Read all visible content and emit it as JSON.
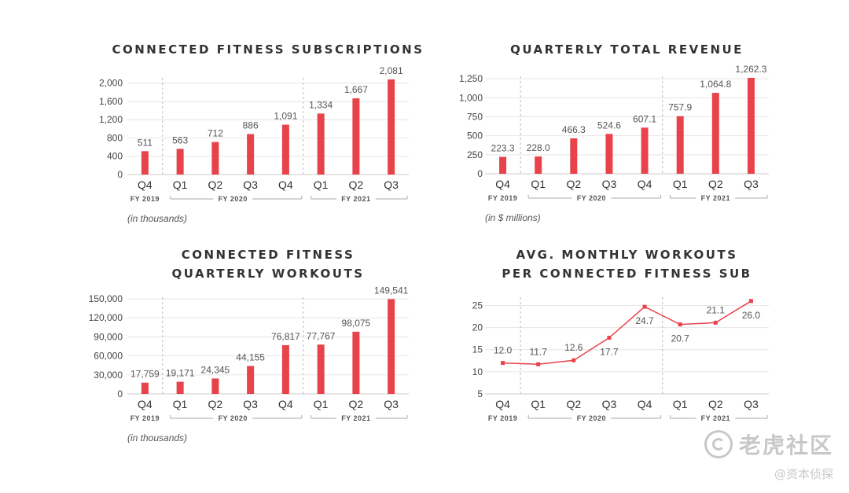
{
  "colors": {
    "bar": "#e8424b",
    "line": "#e8424b",
    "grid": "#e6e6e6",
    "axis": "#cccccc",
    "divider": "#bbbbbb"
  },
  "chart_data": [
    {
      "type": "bar",
      "title": [
        "CONNECTED FITNESS SUBSCRIPTIONS"
      ],
      "categories": [
        "Q4",
        "Q1",
        "Q2",
        "Q3",
        "Q4",
        "Q1",
        "Q2",
        "Q3"
      ],
      "fiscal_years": [
        {
          "label": "FY 2019",
          "categories": 1
        },
        {
          "label": "FY 2020",
          "categories": 4
        },
        {
          "label": "FY 2021",
          "categories": 3
        }
      ],
      "values": [
        511,
        563,
        712,
        886,
        1091,
        1334,
        1667,
        2081
      ],
      "value_labels": [
        "511",
        "563",
        "712",
        "886",
        "1,091",
        "1,334",
        "1,667",
        "2,081"
      ],
      "yticks": [
        0,
        400,
        800,
        1200,
        1600,
        2000
      ],
      "ytick_labels": [
        "0",
        "400",
        "800",
        "1,200",
        "1,600",
        "2,000"
      ],
      "ylim": [
        0,
        2081
      ],
      "grid": true,
      "note": "(in thousands)"
    },
    {
      "type": "bar",
      "title": [
        "QUARTERLY TOTAL REVENUE"
      ],
      "categories": [
        "Q4",
        "Q1",
        "Q2",
        "Q3",
        "Q4",
        "Q1",
        "Q2",
        "Q3"
      ],
      "fiscal_years": [
        {
          "label": "FY 2019",
          "categories": 1
        },
        {
          "label": "FY 2020",
          "categories": 4
        },
        {
          "label": "FY 2021",
          "categories": 3
        }
      ],
      "values": [
        223.3,
        228.0,
        466.3,
        524.6,
        607.1,
        757.9,
        1064.8,
        1262.3
      ],
      "value_labels": [
        "223.3",
        "228.0",
        "466.3",
        "524.6",
        "607.1",
        "757.9",
        "1,064.8",
        "1,262.3"
      ],
      "yticks": [
        0,
        250,
        500,
        750,
        1000,
        1250
      ],
      "ytick_labels": [
        "0",
        "250",
        "500",
        "750",
        "1,000",
        "1,250"
      ],
      "ylim": [
        0,
        1262.3
      ],
      "grid": true,
      "note": "(in $ millions)"
    },
    {
      "type": "bar",
      "title": [
        "CONNECTED FITNESS",
        "QUARTERLY WORKOUTS"
      ],
      "categories": [
        "Q4",
        "Q1",
        "Q2",
        "Q3",
        "Q4",
        "Q1",
        "Q2",
        "Q3"
      ],
      "fiscal_years": [
        {
          "label": "FY 2019",
          "categories": 1
        },
        {
          "label": "FY 2020",
          "categories": 4
        },
        {
          "label": "FY 2021",
          "categories": 3
        }
      ],
      "values": [
        17759,
        19171,
        24345,
        44155,
        76817,
        77767,
        98075,
        149541
      ],
      "value_labels": [
        "17,759",
        "19,171",
        "24,345",
        "44,155",
        "76,817",
        "77,767",
        "98,075",
        "149,541"
      ],
      "yticks": [
        0,
        30000,
        60000,
        90000,
        120000,
        150000
      ],
      "ytick_labels": [
        "0",
        "30,000",
        "60,000",
        "90,000",
        "120,000",
        "150,000"
      ],
      "ylim": [
        0,
        150000
      ],
      "grid": true,
      "note": "(in thousands)"
    },
    {
      "type": "line",
      "title": [
        "AVG. MONTHLY WORKOUTS",
        "PER CONNECTED FITNESS SUB"
      ],
      "categories": [
        "Q4",
        "Q1",
        "Q2",
        "Q3",
        "Q4",
        "Q1",
        "Q2",
        "Q3"
      ],
      "fiscal_years": [
        {
          "label": "FY 2019",
          "categories": 1
        },
        {
          "label": "FY 2020",
          "categories": 4
        },
        {
          "label": "FY 2021",
          "categories": 3
        }
      ],
      "values": [
        12.0,
        11.7,
        12.6,
        17.7,
        24.7,
        20.7,
        21.1,
        26.0
      ],
      "value_labels": [
        "12.0",
        "11.7",
        "12.6",
        "17.7",
        "24.7",
        "20.7",
        "21.1",
        "26.0"
      ],
      "label_positions": [
        "above",
        "above",
        "above",
        "below",
        "below",
        "below",
        "above",
        "below"
      ],
      "yticks": [
        5,
        10,
        15,
        20,
        25
      ],
      "ytick_labels": [
        "5",
        "10",
        "15",
        "20",
        "25"
      ],
      "ylim": [
        5,
        26.5
      ],
      "grid": true,
      "note": ""
    }
  ],
  "watermark": {
    "main": "老虎社区",
    "sub": "@资本侦探"
  }
}
